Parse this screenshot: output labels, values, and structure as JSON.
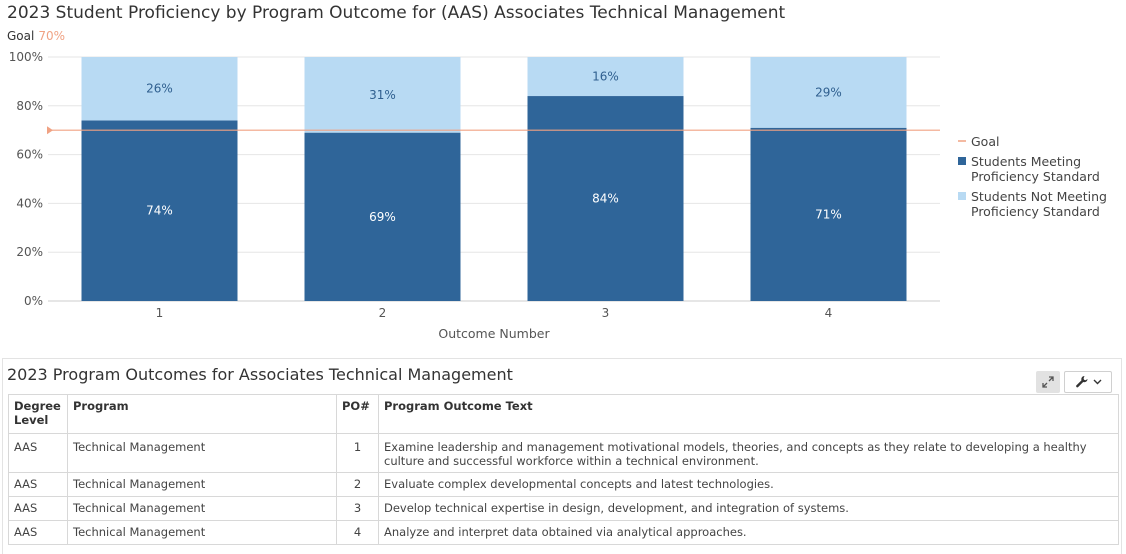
{
  "chart_data": {
    "type": "bar",
    "stacked": true,
    "title": "2023 Student Proficiency by Program Outcome for (AAS) Associates Technical Management",
    "goal_label": "Goal",
    "goal_value_label": "70%",
    "goal": 70,
    "xlabel": "Outcome Number",
    "ylabel": "",
    "ylim": [
      0,
      100
    ],
    "yticks": [
      "0%",
      "20%",
      "40%",
      "60%",
      "80%",
      "100%"
    ],
    "categories": [
      "1",
      "2",
      "3",
      "4"
    ],
    "series": [
      {
        "name": "Students Meeting Proficiency Standard",
        "values": [
          74,
          69,
          84,
          71
        ],
        "labels": [
          "74%",
          "69%",
          "84%",
          "71%"
        ],
        "color": "#2f6599"
      },
      {
        "name": "Students Not Meeting Proficiency Standard",
        "values": [
          26,
          31,
          16,
          29
        ],
        "labels": [
          "26%",
          "31%",
          "16%",
          "29%"
        ],
        "color": "#b8daf3"
      }
    ],
    "legend": [
      {
        "label": "Goal",
        "color": "#f0a283"
      },
      {
        "label": "Students Meeting Proficiency Standard",
        "line1": "Students Meeting",
        "line2": "Proficiency Standard",
        "color": "#2f6599"
      },
      {
        "label": "Students Not Meeting Proficiency Standard",
        "line1": "Students Not Meeting",
        "line2": "Proficiency Standard",
        "color": "#b8daf3"
      }
    ],
    "legend_position": "right",
    "grid": true
  },
  "panel": {
    "title": "2023 Program Outcomes for Associates Technical Management",
    "expand_icon": "expand-icon",
    "tools_icon": "wrench-icon",
    "headers": {
      "degree_level": "Degree Level",
      "program": "Program",
      "po": "PO#",
      "outcome_text": "Program Outcome Text"
    },
    "rows": [
      {
        "degree_level": "AAS",
        "program": "Technical Management",
        "po": "1",
        "outcome_text": "Examine leadership and management motivational models, theories, and concepts as they relate to developing a healthy culture and successful workforce within a technical environment."
      },
      {
        "degree_level": "AAS",
        "program": "Technical Management",
        "po": "2",
        "outcome_text": "Evaluate complex developmental concepts and latest technologies."
      },
      {
        "degree_level": "AAS",
        "program": "Technical Management",
        "po": "3",
        "outcome_text": "Develop technical expertise in design, development, and integration of systems."
      },
      {
        "degree_level": "AAS",
        "program": "Technical Management",
        "po": "4",
        "outcome_text": "Analyze and interpret data obtained via analytical approaches."
      }
    ]
  }
}
